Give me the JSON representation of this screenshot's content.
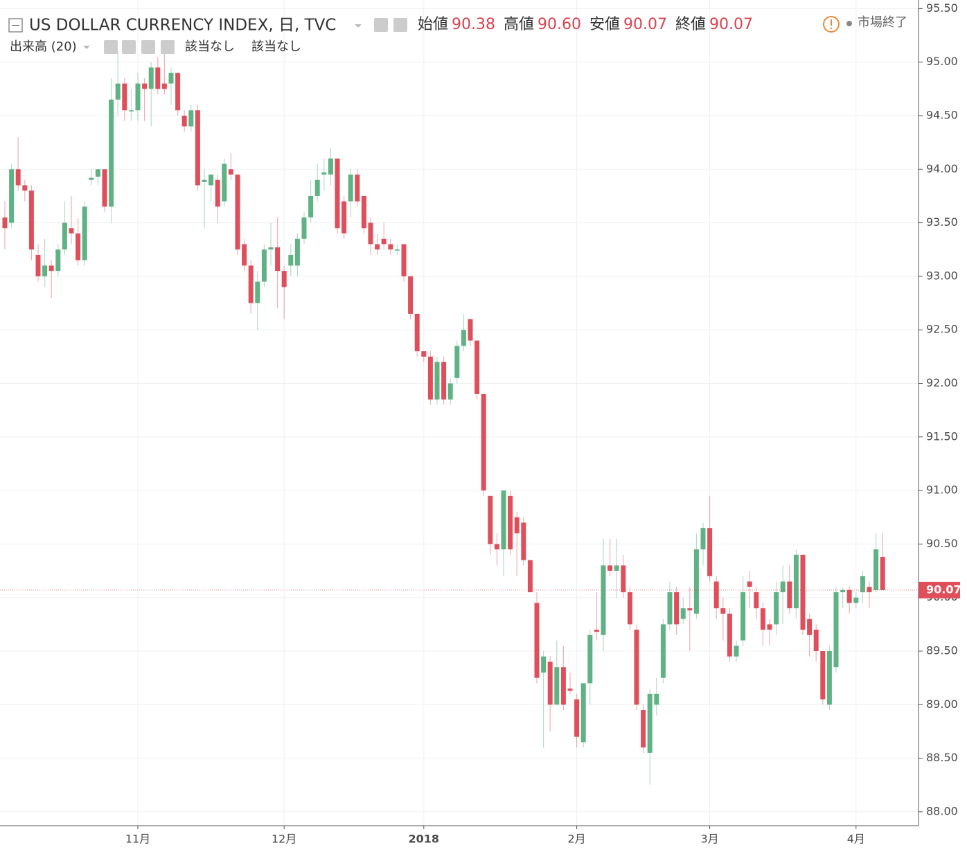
{
  "header": {
    "title": "US DOLLAR CURRENCY INDEX, 日, TVC",
    "ohlc": [
      {
        "label": "始値",
        "value": "90.38"
      },
      {
        "label": "高値",
        "value": "90.60"
      },
      {
        "label": "安値",
        "value": "90.07"
      },
      {
        "label": "終値",
        "value": "90.07"
      }
    ],
    "volume": "出来高 (20)",
    "volume_values": [
      "該当なし",
      "該当なし"
    ],
    "status": "市場終了"
  },
  "chart_data": {
    "type": "candlestick",
    "categories": [
      null,
      null,
      null,
      null,
      null,
      null,
      null,
      null,
      null,
      null,
      null,
      null,
      null,
      null,
      null,
      null,
      null,
      null,
      null,
      null,
      "11月",
      null,
      null,
      null,
      null,
      null,
      null,
      null,
      null,
      null,
      null,
      null,
      null,
      null,
      null,
      null,
      null,
      null,
      null,
      null,
      null,
      null,
      "12月",
      null,
      null,
      null,
      null,
      null,
      null,
      null,
      null,
      null,
      null,
      null,
      null,
      null,
      null,
      null,
      null,
      null,
      null,
      null,
      null,
      "2018",
      null,
      null,
      null,
      null,
      null,
      null,
      null,
      null,
      null,
      null,
      null,
      null,
      null,
      null,
      null,
      null,
      null,
      null,
      null,
      null,
      null,
      null,
      "2月",
      null,
      null,
      null,
      null,
      null,
      null,
      null,
      null,
      null,
      null,
      null,
      null,
      null,
      null,
      null,
      null,
      null,
      null,
      null,
      "3月",
      null,
      null,
      null,
      null,
      null,
      null,
      null,
      null,
      null,
      null,
      null,
      null,
      null,
      null,
      null,
      null,
      null,
      null,
      null,
      null,
      null,
      "4月",
      null,
      null,
      null,
      null
    ],
    "open": [
      93.55,
      93.5,
      94.0,
      93.85,
      93.8,
      93.2,
      93.0,
      93.1,
      93.05,
      93.25,
      93.45,
      93.4,
      93.15,
      93.9,
      93.93,
      94.0,
      93.65,
      94.65,
      94.8,
      94.55,
      94.55,
      94.8,
      94.75,
      94.95,
      94.8,
      94.8,
      94.9,
      94.5,
      94.4,
      94.55,
      93.88,
      93.85,
      93.9,
      93.7,
      94.0,
      93.95,
      93.3,
      93.1,
      92.75,
      92.95,
      93.25,
      93.27,
      93.05,
      93.1,
      93.1,
      93.35,
      93.55,
      93.75,
      93.95,
      93.95,
      94.1,
      93.7,
      93.7,
      93.95,
      93.75,
      93.5,
      93.3,
      93.35,
      93.3,
      93.25,
      93.3,
      93.0,
      92.65,
      92.3,
      92.25,
      91.85,
      92.2,
      91.85,
      92.05,
      92.35,
      92.6,
      92.4,
      91.9,
      90.95,
      90.5,
      90.45,
      90.95,
      90.75,
      90.7,
      90.35,
      89.95,
      89.3,
      89.4,
      89.0,
      89.35,
      89.15,
      89.05,
      88.65,
      89.2,
      89.7,
      89.65,
      90.3,
      90.25,
      90.3,
      90.05,
      89.7,
      88.95,
      88.55,
      89.0,
      89.25,
      89.75,
      90.05,
      89.8,
      89.9,
      89.85,
      90.45,
      90.65,
      90.15,
      89.9,
      89.85,
      89.45,
      89.6,
      90.15,
      90.05,
      89.9,
      89.75,
      89.75,
      90.05,
      90.15,
      89.9,
      90.4,
      89.8,
      89.7,
      89.5,
      89.0,
      89.35,
      90.05,
      90.07,
      89.95,
      90.05,
      90.1,
      90.07,
      90.38
    ],
    "high": [
      93.7,
      94.05,
      94.3,
      93.9,
      93.85,
      93.3,
      93.35,
      93.15,
      93.3,
      93.7,
      93.75,
      93.55,
      93.7,
      94.0,
      94.0,
      94.0,
      94.85,
      95.1,
      94.85,
      94.75,
      94.9,
      94.85,
      95.0,
      95.05,
      95.1,
      94.95,
      94.9,
      94.55,
      94.6,
      94.6,
      94.0,
      93.95,
      93.95,
      94.1,
      94.15,
      93.95,
      93.35,
      93.15,
      93.05,
      93.3,
      93.5,
      93.55,
      93.1,
      93.3,
      93.4,
      93.6,
      93.9,
      94.05,
      94.1,
      94.2,
      94.1,
      93.75,
      94.0,
      94.0,
      93.75,
      93.55,
      93.4,
      93.5,
      93.35,
      93.3,
      93.3,
      93.0,
      92.65,
      92.3,
      92.3,
      92.25,
      92.25,
      92.05,
      92.4,
      92.65,
      92.6,
      92.4,
      91.9,
      90.95,
      90.6,
      91.0,
      91.0,
      90.8,
      90.75,
      90.35,
      90.05,
      89.5,
      89.45,
      89.6,
      89.55,
      89.3,
      89.1,
      89.2,
      89.7,
      90.05,
      90.55,
      90.55,
      90.55,
      90.4,
      90.1,
      89.75,
      89.0,
      89.15,
      89.25,
      89.8,
      90.15,
      90.1,
      90.0,
      90.1,
      90.6,
      90.7,
      90.95,
      90.2,
      90.0,
      89.9,
      89.6,
      90.2,
      90.25,
      90.1,
      89.95,
      89.8,
      90.15,
      90.3,
      90.3,
      90.45,
      90.4,
      89.85,
      89.75,
      89.5,
      89.55,
      90.1,
      90.1,
      90.1,
      90.05,
      90.25,
      90.15,
      90.6,
      90.6
    ],
    "low": [
      93.25,
      93.45,
      93.8,
      93.7,
      93.15,
      92.95,
      92.9,
      92.8,
      93.0,
      93.2,
      93.3,
      93.1,
      93.1,
      93.85,
      93.85,
      93.6,
      93.5,
      94.5,
      94.45,
      94.45,
      94.45,
      94.45,
      94.4,
      94.7,
      94.7,
      94.6,
      94.5,
      94.35,
      94.35,
      93.8,
      93.45,
      93.7,
      93.5,
      93.65,
      93.9,
      93.2,
      93.05,
      92.65,
      92.5,
      92.9,
      93.1,
      92.7,
      92.6,
      93.0,
      93.0,
      93.3,
      93.5,
      93.7,
      93.8,
      93.85,
      93.4,
      93.35,
      93.55,
      93.65,
      93.4,
      93.2,
      93.2,
      93.25,
      93.2,
      93.2,
      92.95,
      92.6,
      92.25,
      92.2,
      91.8,
      91.8,
      91.8,
      91.8,
      92.0,
      92.3,
      92.35,
      91.85,
      90.95,
      90.4,
      90.3,
      90.2,
      90.4,
      90.2,
      90.3,
      90.05,
      89.2,
      88.6,
      88.75,
      89.0,
      88.95,
      89.1,
      88.6,
      88.6,
      89.0,
      89.6,
      89.5,
      90.2,
      90.0,
      90.0,
      89.7,
      88.95,
      88.55,
      88.25,
      88.9,
      89.2,
      89.7,
      89.65,
      89.75,
      89.5,
      89.8,
      90.3,
      90.15,
      89.8,
      89.6,
      89.4,
      89.4,
      89.55,
      89.9,
      89.8,
      89.55,
      89.55,
      89.65,
      89.75,
      89.85,
      89.8,
      89.65,
      89.45,
      89.4,
      89.0,
      88.95,
      89.3,
      89.9,
      89.85,
      89.9,
      89.95,
      89.9,
      90.05,
      90.07
    ],
    "close": [
      93.45,
      94.0,
      93.85,
      93.8,
      93.25,
      93.0,
      93.1,
      93.05,
      93.25,
      93.5,
      93.4,
      93.15,
      93.65,
      93.92,
      94.0,
      93.65,
      94.65,
      94.8,
      94.55,
      94.55,
      94.8,
      94.75,
      94.95,
      94.75,
      94.75,
      94.9,
      94.55,
      94.4,
      94.55,
      93.85,
      93.9,
      93.95,
      93.65,
      94.05,
      93.95,
      93.25,
      93.1,
      92.75,
      92.95,
      93.25,
      93.27,
      93.05,
      92.9,
      93.2,
      93.35,
      93.55,
      93.75,
      93.9,
      93.97,
      94.1,
      93.45,
      93.4,
      93.95,
      93.7,
      93.45,
      93.3,
      93.25,
      93.3,
      93.25,
      93.25,
      93.0,
      92.65,
      92.3,
      92.25,
      91.85,
      92.2,
      91.85,
      92.0,
      92.35,
      92.5,
      92.4,
      91.9,
      91.0,
      90.5,
      90.45,
      91.0,
      90.45,
      90.6,
      90.35,
      90.05,
      89.25,
      89.45,
      89.0,
      89.35,
      89.0,
      89.13,
      88.7,
      89.2,
      89.65,
      89.68,
      90.3,
      90.25,
      90.3,
      90.05,
      89.75,
      89.0,
      88.6,
      89.1,
      89.1,
      89.75,
      90.05,
      89.75,
      89.9,
      89.88,
      90.45,
      90.65,
      90.2,
      89.9,
      89.85,
      89.45,
      89.55,
      90.05,
      90.1,
      89.9,
      89.7,
      89.7,
      90.05,
      90.15,
      89.9,
      90.4,
      89.7,
      89.65,
      89.5,
      89.05,
      89.5,
      90.05,
      90.07,
      89.95,
      90.0,
      90.2,
      90.05,
      90.45,
      90.07
    ],
    "up_color": "#5fb283",
    "down_color": "#df4f5b",
    "ylim": [
      87.87,
      95.58
    ],
    "yticks": [
      {
        "value": 88,
        "label": "88.00"
      },
      {
        "value": 88.5,
        "label": "88.50"
      },
      {
        "value": 89,
        "label": "89.00"
      },
      {
        "value": 89.5,
        "label": "89.50"
      },
      {
        "value": 90,
        "label": "90.00"
      },
      {
        "value": 90.5,
        "label": "90.50"
      },
      {
        "value": 91,
        "label": "91.00"
      },
      {
        "value": 91.5,
        "label": "91.50"
      },
      {
        "value": 92,
        "label": "92.00"
      },
      {
        "value": 92.5,
        "label": "92.50"
      },
      {
        "value": 93,
        "label": "93.00"
      },
      {
        "value": 93.5,
        "label": "93.50"
      },
      {
        "value": 94,
        "label": "94.00"
      },
      {
        "value": 94.5,
        "label": "94.50"
      },
      {
        "value": 95,
        "label": "95.00"
      },
      {
        "value": 95.5,
        "label": "95.50"
      }
    ],
    "grid": true
  }
}
